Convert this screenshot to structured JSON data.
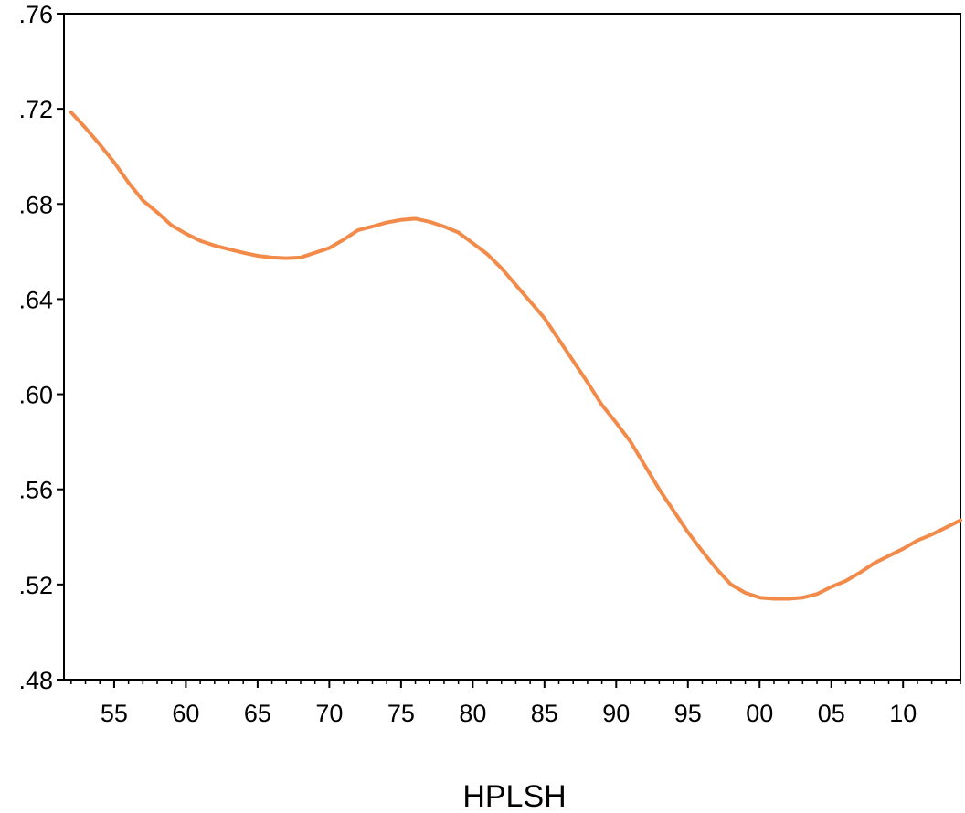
{
  "chart_data": {
    "type": "line",
    "title": "",
    "xlabel": "",
    "ylabel": "",
    "series_label": "HPLSH",
    "xlim": [
      1951.5,
      2014
    ],
    "ylim": [
      0.48,
      0.76
    ],
    "y_ticks": [
      {
        "value": 0.48,
        "label": ".48"
      },
      {
        "value": 0.52,
        "label": ".52"
      },
      {
        "value": 0.56,
        "label": ".56"
      },
      {
        "value": 0.6,
        "label": ".60"
      },
      {
        "value": 0.64,
        "label": ".64"
      },
      {
        "value": 0.68,
        "label": ".68"
      },
      {
        "value": 0.72,
        "label": ".72"
      },
      {
        "value": 0.76,
        "label": ".76"
      }
    ],
    "x_ticks": [
      {
        "value": 1955,
        "label": "55"
      },
      {
        "value": 1960,
        "label": "60"
      },
      {
        "value": 1965,
        "label": "65"
      },
      {
        "value": 1970,
        "label": "70"
      },
      {
        "value": 1975,
        "label": "75"
      },
      {
        "value": 1980,
        "label": "80"
      },
      {
        "value": 1985,
        "label": "85"
      },
      {
        "value": 1990,
        "label": "90"
      },
      {
        "value": 1995,
        "label": "95"
      },
      {
        "value": 2000,
        "label": "00"
      },
      {
        "value": 2005,
        "label": "05"
      },
      {
        "value": 2010,
        "label": "10"
      }
    ],
    "grid": false,
    "series": [
      {
        "color": "#f28a4a",
        "x": [
          1952,
          1953,
          1954,
          1955,
          1956,
          1957,
          1958,
          1959,
          1960,
          1961,
          1962,
          1963,
          1964,
          1965,
          1966,
          1967,
          1968,
          1969,
          1970,
          1971,
          1972,
          1973,
          1974,
          1975,
          1976,
          1977,
          1978,
          1979,
          1980,
          1981,
          1982,
          1983,
          1984,
          1985,
          1986,
          1987,
          1988,
          1989,
          1990,
          1991,
          1992,
          1993,
          1994,
          1995,
          1996,
          1997,
          1998,
          1999,
          2000,
          2001,
          2002,
          2003,
          2004,
          2005,
          2006,
          2007,
          2008,
          2009,
          2010,
          2011,
          2012,
          2013,
          2014
        ],
        "values": [
          0.7185,
          0.712,
          0.705,
          0.6975,
          0.689,
          0.6815,
          0.6765,
          0.671,
          0.6675,
          0.6645,
          0.6625,
          0.661,
          0.6595,
          0.6582,
          0.6575,
          0.6572,
          0.6575,
          0.6595,
          0.6615,
          0.665,
          0.669,
          0.6705,
          0.6722,
          0.6733,
          0.6738,
          0.6725,
          0.6705,
          0.668,
          0.6635,
          0.659,
          0.653,
          0.646,
          0.639,
          0.632,
          0.623,
          0.614,
          0.605,
          0.5955,
          0.588,
          0.58,
          0.57,
          0.56,
          0.551,
          0.542,
          0.534,
          0.5265,
          0.52,
          0.5165,
          0.5145,
          0.514,
          0.514,
          0.5145,
          0.516,
          0.519,
          0.5215,
          0.525,
          0.529,
          0.532,
          0.535,
          0.5385,
          0.541,
          0.544,
          0.547
        ]
      }
    ]
  }
}
